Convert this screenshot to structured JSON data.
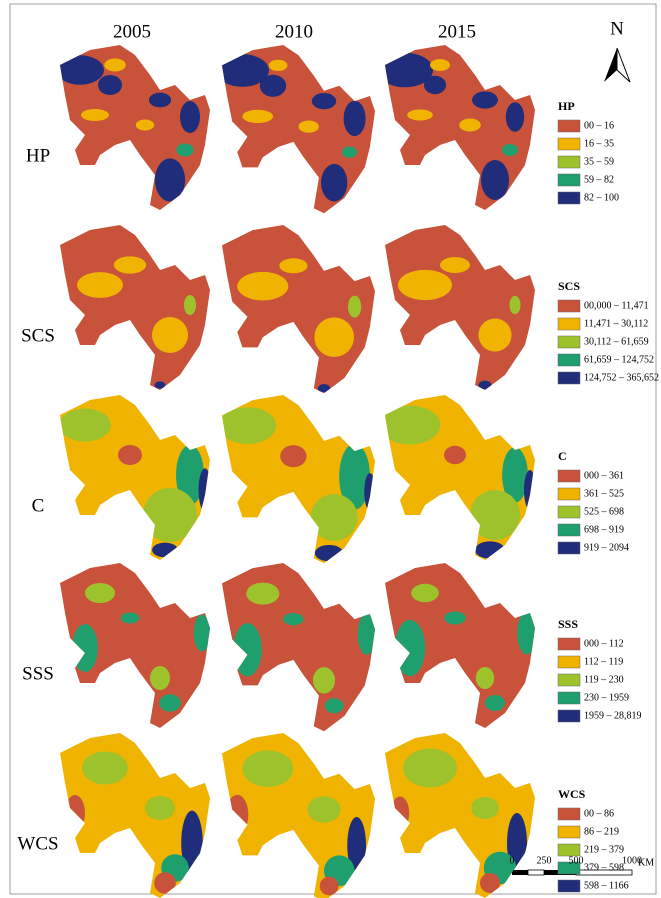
{
  "column_headers": [
    "2005",
    "2010",
    "2015"
  ],
  "north_label": "N",
  "legend_colors": [
    "#c8533a",
    "#f0b400",
    "#9ec22c",
    "#1f9e6e",
    "#1f2d7a"
  ],
  "rows": [
    {
      "label": "HP",
      "legend_title": "HP",
      "legend_items": [
        "00 – 16",
        "16 – 35",
        "35 – 59",
        "59 – 82",
        "82 – 100"
      ]
    },
    {
      "label": "SCS",
      "legend_title": "SCS",
      "legend_items": [
        "00,000 – 11,471",
        "11,471 – 30,112",
        "30,112 – 61,659",
        "61,659 – 124,752",
        "124,752 – 365,652"
      ]
    },
    {
      "label": "C",
      "legend_title": "C",
      "legend_items": [
        "000 – 361",
        "361 – 525",
        "525 – 698",
        "698 – 919",
        "919 – 2094"
      ]
    },
    {
      "label": "SSS",
      "legend_title": "SSS",
      "legend_items": [
        "000 – 112",
        "112 – 119",
        "119 – 230",
        "230 – 1959",
        "1959 – 28,819"
      ]
    },
    {
      "label": "WCS",
      "legend_title": "WCS",
      "legend_items": [
        "00 – 86",
        "86 – 219",
        "219 – 379",
        "379 – 598",
        "598 – 1166"
      ]
    }
  ],
  "scale_bar": {
    "labels": [
      "0",
      "250",
      "500",
      "1000"
    ],
    "unit": "KM"
  }
}
